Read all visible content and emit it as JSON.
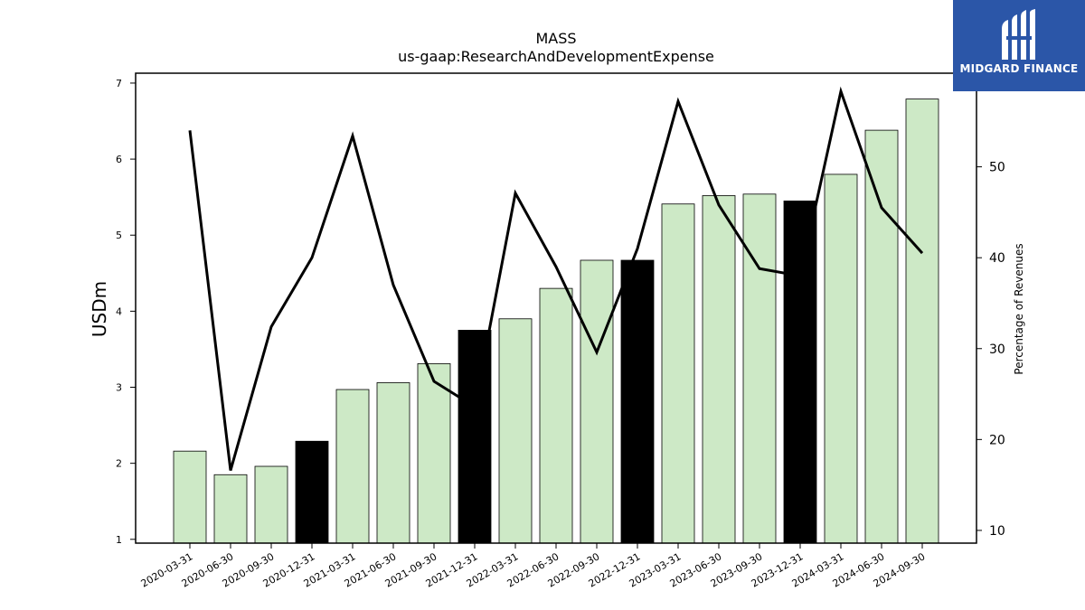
{
  "brand": {
    "name": "MIDGARD FINANCE",
    "color": "#2b56a8"
  },
  "chart_data": {
    "type": "bar",
    "title": "MASS",
    "subtitle": "us-gaap:ResearchAndDevelopmentExpense",
    "ylabel": "USDm",
    "y2label": "Percentage of Revenues",
    "ylim": [
      0.95,
      7.13
    ],
    "y2lim": [
      8.6,
      60.3
    ],
    "yticks": [
      1,
      2,
      3,
      4,
      5,
      6,
      7
    ],
    "y2ticks": [
      10,
      20,
      30,
      40,
      50
    ],
    "categories": [
      "2020-03-31",
      "2020-06-30",
      "2020-09-30",
      "2020-12-31",
      "2021-03-31",
      "2021-06-30",
      "2021-09-30",
      "2021-12-31",
      "2022-03-31",
      "2022-06-30",
      "2022-09-30",
      "2022-12-31",
      "2023-03-31",
      "2023-06-30",
      "2023-09-30",
      "2023-12-31",
      "2024-03-31",
      "2024-06-30",
      "2024-09-30"
    ],
    "series": [
      {
        "values": [
          2.16,
          1.85,
          1.96,
          2.29,
          2.97,
          3.06,
          3.31,
          3.75,
          3.9,
          4.3,
          4.67,
          4.67,
          5.41,
          5.52,
          5.54,
          5.45,
          5.8,
          6.38,
          6.79
        ],
        "colors": [
          "#cde9c6",
          "#cde9c6",
          "#cde9c6",
          "#000000",
          "#cde9c6",
          "#cde9c6",
          "#cde9c6",
          "#000000",
          "#cde9c6",
          "#cde9c6",
          "#cde9c6",
          "#000000",
          "#cde9c6",
          "#cde9c6",
          "#cde9c6",
          "#000000",
          "#cde9c6",
          "#cde9c6",
          "#cde9c6"
        ]
      },
      {
        "type": "line",
        "axis": "right",
        "color": "#000000",
        "values": [
          54.0,
          16.6,
          32.4,
          40.0,
          53.4,
          37.0,
          26.4,
          23.6,
          47.1,
          39.0,
          29.6,
          41.0,
          57.2,
          45.8,
          38.8,
          38.0,
          58.3,
          45.5,
          40.5
        ]
      }
    ],
    "grid": false,
    "legend": "none"
  }
}
